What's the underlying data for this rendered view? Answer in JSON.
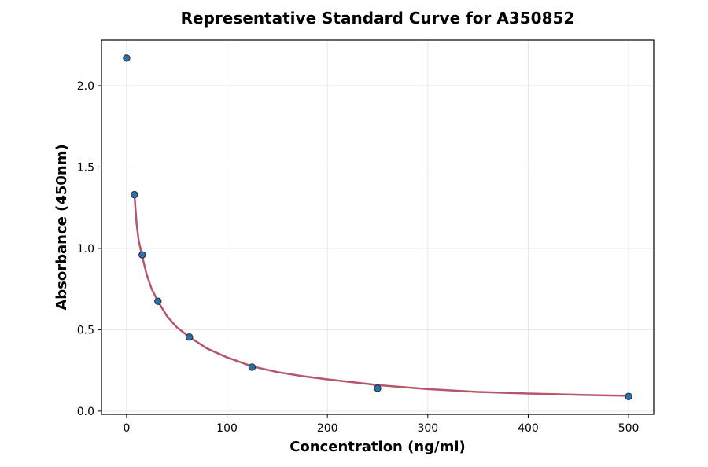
{
  "chart_data": {
    "type": "scatter",
    "title": "Representative Standard Curve for A350852",
    "xlabel": "Concentration (ng/ml)",
    "ylabel": "Absorbance (450nm)",
    "xlim": [
      -25,
      525
    ],
    "ylim": [
      -0.02,
      2.28
    ],
    "xticks": [
      0,
      100,
      200,
      300,
      400,
      500
    ],
    "yticks": [
      0.0,
      0.5,
      1.0,
      1.5,
      2.0
    ],
    "xtick_labels": [
      "0",
      "100",
      "200",
      "300",
      "400",
      "500"
    ],
    "ytick_labels": [
      "0.0",
      "0.5",
      "1.0",
      "1.5",
      "2.0"
    ],
    "grid": true,
    "series": [
      {
        "kind": "points",
        "color": "#2e6fa8",
        "x": [
          0,
          7.8,
          15.6,
          31.25,
          62.5,
          125,
          250,
          500
        ],
        "y": [
          2.17,
          1.33,
          0.96,
          0.675,
          0.455,
          0.27,
          0.14,
          0.09
        ]
      },
      {
        "kind": "fit-curve",
        "color": "#b5566a",
        "x": [
          7.8,
          10,
          12,
          15.6,
          20,
          25,
          31.25,
          40,
          50,
          62.5,
          80,
          100,
          125,
          150,
          175,
          200,
          250,
          300,
          350,
          400,
          450,
          500
        ],
        "y": [
          1.33,
          1.15,
          1.05,
          0.95,
          0.84,
          0.75,
          0.675,
          0.585,
          0.515,
          0.455,
          0.385,
          0.33,
          0.275,
          0.24,
          0.215,
          0.195,
          0.16,
          0.135,
          0.118,
          0.108,
          0.1,
          0.094
        ]
      }
    ]
  }
}
